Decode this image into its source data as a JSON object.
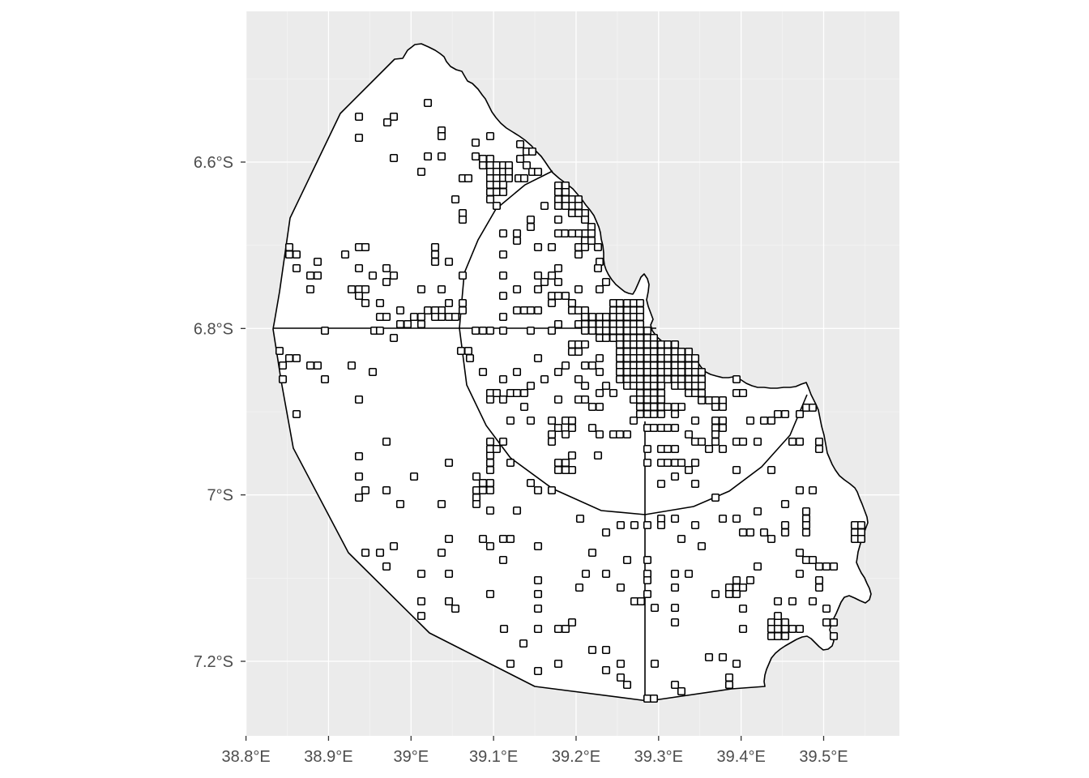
{
  "map": {
    "panel_background": "#ebebeb",
    "x_ticks": [
      {
        "value": 38.8,
        "label": "38.8°E"
      },
      {
        "value": 38.9,
        "label": "38.9°E"
      },
      {
        "value": 39.0,
        "label": "39°E"
      },
      {
        "value": 39.1,
        "label": "39.1°E"
      },
      {
        "value": 39.2,
        "label": "39.2°E"
      },
      {
        "value": 39.3,
        "label": "39.3°E"
      },
      {
        "value": 39.4,
        "label": "39.4°E"
      },
      {
        "value": 39.5,
        "label": "39.5°E"
      }
    ],
    "y_ticks": [
      {
        "value": -6.6,
        "label": "6.6°S"
      },
      {
        "value": -6.8,
        "label": "6.8°S"
      },
      {
        "value": -7.0,
        "label": "7°S"
      },
      {
        "value": -7.2,
        "label": "7.2°S"
      }
    ],
    "lon_range": [
      38.785,
      39.585
    ],
    "lat_range": [
      -7.28,
      -6.405
    ]
  },
  "chart_data": {
    "type": "map",
    "title": "",
    "xlabel": "",
    "ylabel": "",
    "xlim": [
      38.785,
      39.585
    ],
    "ylim": [
      -7.28,
      -6.405
    ],
    "grid": true,
    "legend": "none",
    "region_outline": [
      [
        39.04,
        -6.63
      ],
      [
        39.05,
        -6.67
      ],
      [
        39.06,
        -6.7
      ],
      [
        39.06,
        -6.72
      ],
      [
        39.05,
        -6.74
      ],
      [
        39.04,
        -6.76
      ],
      [
        39.03,
        -6.78
      ],
      [
        39.04,
        -6.8
      ],
      [
        39.05,
        -6.82
      ],
      [
        39.08,
        -6.87
      ],
      [
        39.13,
        -6.94
      ],
      [
        39.19,
        -6.99
      ],
      [
        39.25,
        -7.01
      ],
      [
        39.3,
        -7.02
      ],
      [
        39.35,
        -7.01
      ],
      [
        39.4,
        -6.96
      ],
      [
        39.45,
        -6.91
      ],
      [
        39.48,
        -6.87
      ],
      [
        39.49,
        -6.85
      ],
      [
        39.5,
        -6.84
      ],
      [
        39.51,
        -6.86
      ],
      [
        39.52,
        -6.9
      ],
      [
        39.53,
        -6.95
      ],
      [
        39.54,
        -7.0
      ],
      [
        39.55,
        -7.02
      ],
      [
        39.56,
        -7.05
      ],
      [
        39.56,
        -7.1
      ],
      [
        39.57,
        -7.13
      ],
      [
        39.56,
        -7.16
      ],
      [
        39.54,
        -7.19
      ],
      [
        39.52,
        -7.21
      ],
      [
        39.5,
        -7.2
      ],
      [
        39.48,
        -7.19
      ],
      [
        39.45,
        -7.18
      ],
      [
        39.43,
        -7.21
      ],
      [
        39.4,
        -7.23
      ],
      [
        39.3,
        -7.245
      ],
      [
        39.25,
        -7.24
      ],
      [
        39.2,
        -7.23
      ],
      [
        39.1,
        -7.21
      ],
      [
        39.0,
        -7.15
      ],
      [
        38.95,
        -7.09
      ],
      [
        38.9,
        -7.02
      ],
      [
        38.86,
        -6.95
      ],
      [
        38.84,
        -6.87
      ],
      [
        38.83,
        -6.82
      ],
      [
        38.83,
        -6.78
      ],
      [
        38.84,
        -6.72
      ],
      [
        38.86,
        -6.67
      ],
      [
        38.9,
        -6.59
      ],
      [
        38.95,
        -6.53
      ],
      [
        38.98,
        -6.47
      ],
      [
        39.01,
        -6.43
      ],
      [
        39.04,
        -6.42
      ],
      [
        39.07,
        -6.43
      ],
      [
        39.1,
        -6.46
      ],
      [
        39.13,
        -6.5
      ],
      [
        39.16,
        -6.54
      ],
      [
        39.18,
        -6.58
      ],
      [
        39.2,
        -6.62
      ],
      [
        39.22,
        -6.66
      ],
      [
        39.24,
        -6.7
      ],
      [
        39.25,
        -6.73
      ],
      [
        39.27,
        -6.75
      ],
      [
        39.29,
        -6.77
      ],
      [
        39.3,
        -6.79
      ],
      [
        39.32,
        -6.81
      ],
      [
        39.34,
        -6.83
      ],
      [
        39.36,
        -6.84
      ],
      [
        39.38,
        -6.85
      ]
    ],
    "cells": []
  }
}
